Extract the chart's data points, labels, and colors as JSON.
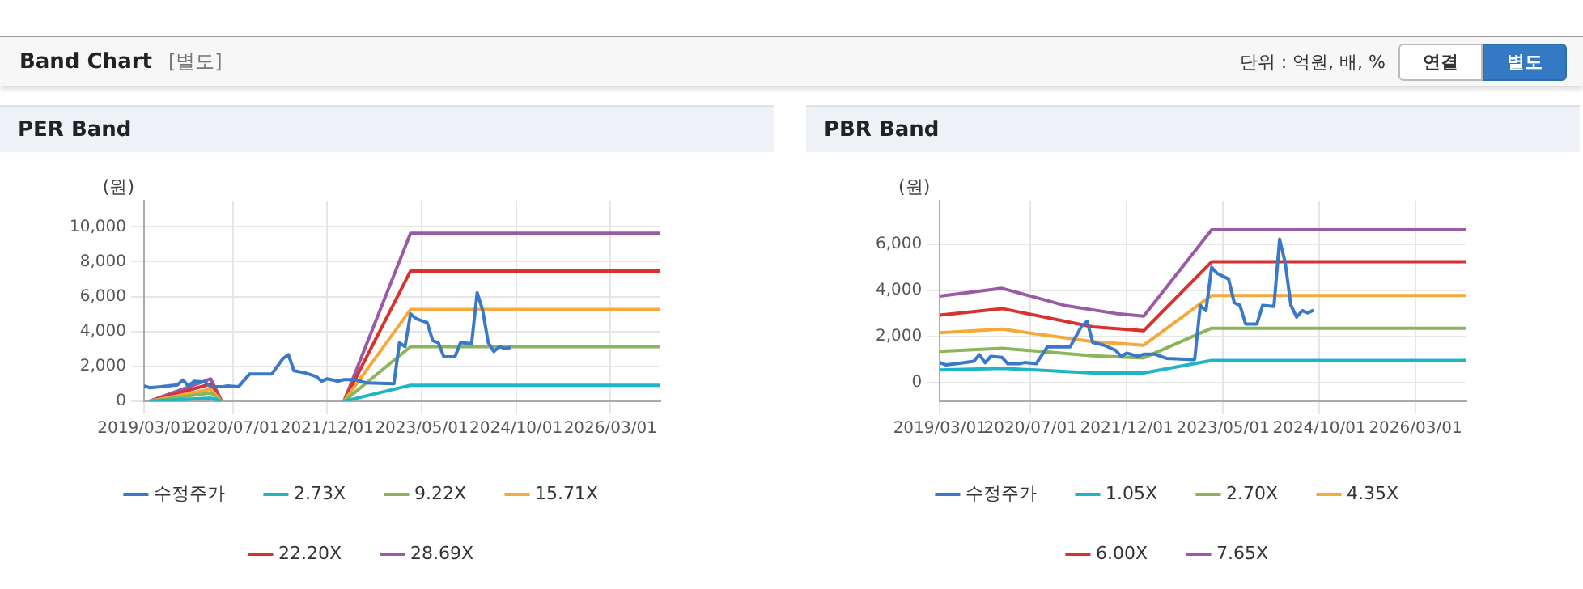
{
  "chart_data": [
    {
      "type": "other",
      "title": "Band Chart",
      "subtitle": "[별도]",
      "annotations": [
        "단위 : 억원, 배, %",
        "연결",
        "별도"
      ]
    },
    {
      "type": "line",
      "title": "PER Band",
      "ylabel": "(원)",
      "xlim": [
        "2019-03",
        "2026-12"
      ],
      "ylim": [
        0,
        11500
      ],
      "xticks": [
        {
          "value": "2019-03",
          "label": "2019/03/01"
        },
        {
          "value": "2020-07",
          "label": "2020/07/01"
        },
        {
          "value": "2021-12",
          "label": "2021/12/01"
        },
        {
          "value": "2023-05",
          "label": "2023/05/01"
        },
        {
          "value": "2024-10",
          "label": "2024/10/01"
        },
        {
          "value": "2026-03",
          "label": "2026/03/01"
        }
      ],
      "yticks": [
        0,
        {
          "value": 2000,
          "label": "2,000"
        },
        {
          "value": 4000,
          "label": "4,000"
        },
        {
          "value": 6000,
          "label": "6,000"
        },
        {
          "value": 8000,
          "label": "8,000"
        },
        {
          "value": 10000,
          "label": "10,000"
        }
      ],
      "grid": true,
      "legend": "bottom",
      "marker": "none",
      "line_style": "solid",
      "x": [
        "2019-03",
        "2019-04",
        "2019-06",
        "2019-09",
        "2019-10",
        "2019-11",
        "2019-12",
        "2020-02",
        "2020-03",
        "2020-05",
        "2020-06",
        "2020-08",
        "2020-10",
        "2021-02",
        "2021-04",
        "2021-05",
        "2021-06",
        "2021-08",
        "2021-10",
        "2021-11",
        "2021-12",
        "2022-02",
        "2022-03",
        "2022-05",
        "2022-07",
        "2022-12",
        "2023-01",
        "2023-02",
        "2023-03",
        "2023-04",
        "2023-06",
        "2023-07",
        "2023-08",
        "2023-09",
        "2023-11",
        "2023-12",
        "2024-02",
        "2024-03",
        "2024-04",
        "2024-05",
        "2024-06",
        "2024-07",
        "2024-08",
        "2024-09"
      ],
      "series": [
        {
          "name": "수정주가",
          "color": "#3a78c9",
          "values": [
            880,
            780,
            830,
            940,
            1220,
            870,
            1150,
            1100,
            830,
            830,
            880,
            830,
            1560,
            1560,
            2440,
            2670,
            1750,
            1630,
            1420,
            1150,
            1290,
            1150,
            1240,
            1240,
            1060,
            1010,
            3360,
            3130,
            5010,
            4740,
            4500,
            3470,
            3360,
            2550,
            2550,
            3360,
            3310,
            6230,
            5200,
            3360,
            2850,
            3130,
            3030,
            3080
          ]
        },
        {
          "name": "2.73X",
          "color": "#1fb5c4",
          "x": [
            "2019-04",
            "2020-03",
            "2020-05",
            "2021-01",
            "2022-03",
            "2023-03",
            "2026-12"
          ],
          "values": [
            0,
            180,
            0,
            null,
            0,
            920,
            920
          ]
        },
        {
          "name": "9.22X",
          "color": "#8ab55a",
          "x": [
            "2019-04",
            "2020-03",
            "2020-05",
            "2021-01",
            "2022-03",
            "2023-03",
            "2026-12"
          ],
          "values": [
            0,
            480,
            0,
            null,
            0,
            3130,
            3130
          ]
        },
        {
          "name": "15.71X",
          "color": "#f5a93a",
          "x": [
            "2019-04",
            "2020-03",
            "2020-05",
            "2021-01",
            "2022-03",
            "2023-03",
            "2026-12"
          ],
          "values": [
            0,
            690,
            0,
            null,
            0,
            5260,
            5260
          ]
        },
        {
          "name": "22.20X",
          "color": "#d9322e",
          "x": [
            "2019-04",
            "2020-03",
            "2020-05",
            "2021-01",
            "2022-03",
            "2023-03",
            "2026-12"
          ],
          "values": [
            0,
            990,
            0,
            null,
            0,
            7470,
            7470
          ]
        },
        {
          "name": "28.69X",
          "color": "#9b5aa6",
          "x": [
            "2019-04",
            "2020-03",
            "2020-05",
            "2021-01",
            "2022-03",
            "2023-03",
            "2026-12"
          ],
          "values": [
            0,
            1290,
            0,
            null,
            0,
            9630,
            9630
          ]
        }
      ]
    },
    {
      "type": "line",
      "title": "PBR Band",
      "ylabel": "(원)",
      "xlim": [
        "2019-03",
        "2026-12"
      ],
      "ylim": [
        -800,
        7900
      ],
      "xticks": [
        {
          "value": "2019-03",
          "label": "2019/03/01"
        },
        {
          "value": "2020-07",
          "label": "2020/07/01"
        },
        {
          "value": "2021-12",
          "label": "2021/12/01"
        },
        {
          "value": "2023-05",
          "label": "2023/05/01"
        },
        {
          "value": "2024-10",
          "label": "2024/10/01"
        },
        {
          "value": "2026-03",
          "label": "2026/03/01"
        }
      ],
      "yticks": [
        0,
        {
          "value": 2000,
          "label": "2,000"
        },
        {
          "value": 4000,
          "label": "4,000"
        },
        {
          "value": 6000,
          "label": "6,000"
        }
      ],
      "grid": true,
      "legend": "bottom",
      "marker": "none",
      "line_style": "solid",
      "x": [
        "2019-03",
        "2019-04",
        "2019-06",
        "2019-09",
        "2019-10",
        "2019-11",
        "2019-12",
        "2020-02",
        "2020-03",
        "2020-05",
        "2020-06",
        "2020-08",
        "2020-10",
        "2021-02",
        "2021-04",
        "2021-05",
        "2021-06",
        "2021-08",
        "2021-10",
        "2021-11",
        "2021-12",
        "2022-02",
        "2022-03",
        "2022-05",
        "2022-07",
        "2022-12",
        "2023-01",
        "2023-02",
        "2023-03",
        "2023-04",
        "2023-06",
        "2023-07",
        "2023-08",
        "2023-09",
        "2023-11",
        "2023-12",
        "2024-02",
        "2024-03",
        "2024-04",
        "2024-05",
        "2024-06",
        "2024-07",
        "2024-08",
        "2024-09"
      ],
      "series": [
        {
          "name": "수정주가",
          "color": "#3a78c9",
          "values": [
            880,
            780,
            830,
            940,
            1220,
            870,
            1150,
            1100,
            830,
            830,
            880,
            830,
            1560,
            1560,
            2440,
            2670,
            1750,
            1630,
            1420,
            1150,
            1290,
            1150,
            1240,
            1240,
            1060,
            1010,
            3360,
            3130,
            5010,
            4740,
            4500,
            3470,
            3360,
            2550,
            2550,
            3360,
            3310,
            6230,
            5200,
            3360,
            2850,
            3130,
            3030,
            3150
          ]
        },
        {
          "name": "1.05X",
          "color": "#1fb5c4",
          "x": [
            "2019-03",
            "2020-02",
            "2021-06",
            "2022-03",
            "2023-03",
            "2026-12"
          ],
          "values": [
            560,
            630,
            430,
            430,
            970,
            970
          ]
        },
        {
          "name": "2.70X",
          "color": "#8ab55a",
          "x": [
            "2019-03",
            "2020-02",
            "2021-06",
            "2022-03",
            "2023-03",
            "2026-12"
          ],
          "values": [
            1370,
            1500,
            1170,
            1080,
            2370,
            2370
          ]
        },
        {
          "name": "4.35X",
          "color": "#f5a93a",
          "x": [
            "2019-03",
            "2020-02",
            "2021-06",
            "2022-03",
            "2023-03",
            "2026-12"
          ],
          "values": [
            2170,
            2330,
            1790,
            1630,
            3790,
            3790
          ]
        },
        {
          "name": "6.00X",
          "color": "#d9322e",
          "x": [
            "2019-03",
            "2020-02",
            "2021-06",
            "2022-03",
            "2023-03",
            "2026-12"
          ],
          "values": [
            2940,
            3220,
            2430,
            2260,
            5250,
            5250
          ]
        },
        {
          "name": "7.65X",
          "color": "#9b5aa6",
          "x": [
            "2019-03",
            "2020-02",
            "2021-01",
            "2021-10",
            "2022-03",
            "2023-03",
            "2026-12"
          ],
          "values": [
            3760,
            4100,
            3360,
            3010,
            2890,
            6640,
            6640
          ]
        }
      ]
    }
  ]
}
